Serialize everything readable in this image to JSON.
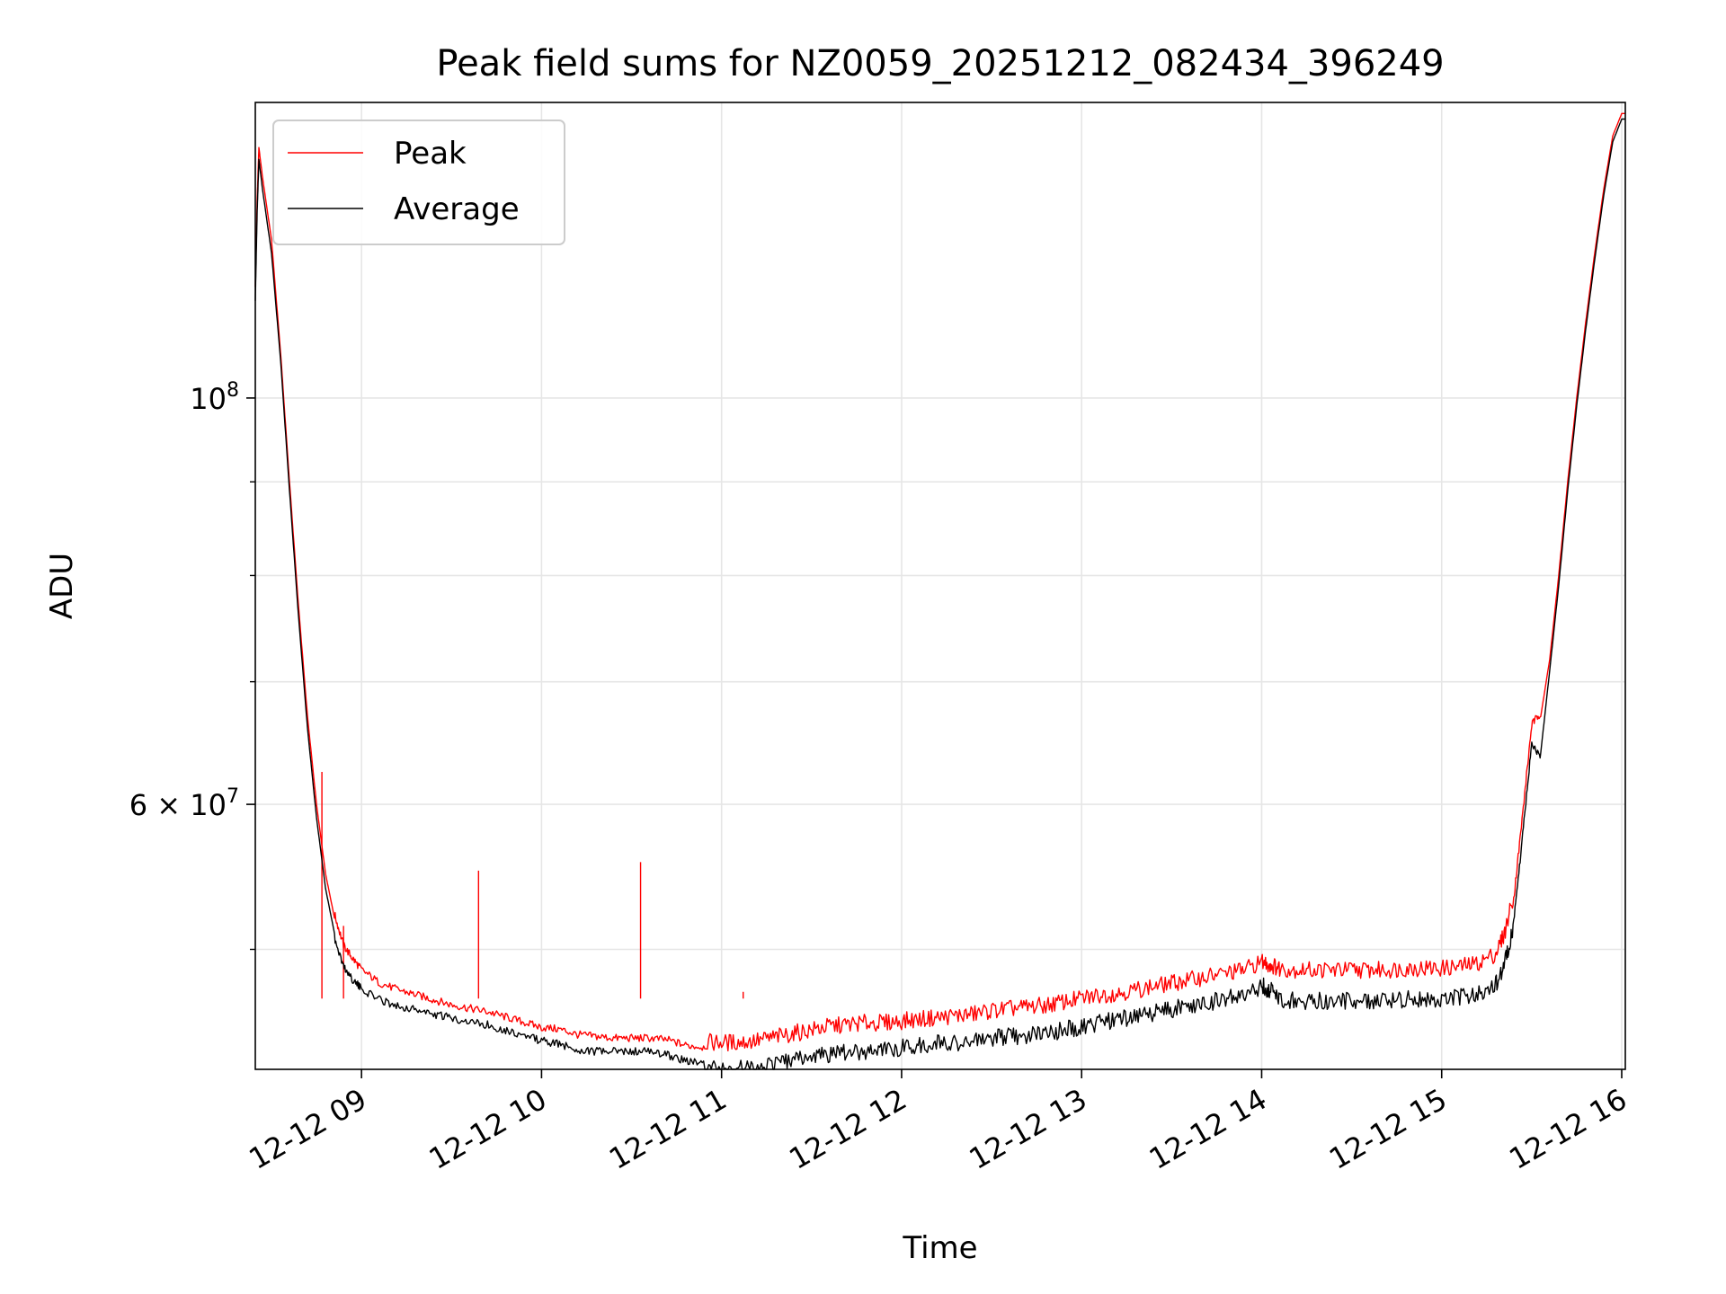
{
  "chart_data": {
    "type": "line",
    "title": "Peak field sums for NZ0059_20251212_082434_396249",
    "xlabel": "Time",
    "ylabel": "ADU",
    "yscale": "log",
    "grid": true,
    "legend_position": "top-left",
    "xlim": [
      8.41,
      16.02
    ],
    "ylim": [
      43000000,
      145000000
    ],
    "x_ticks": [
      {
        "value": 9,
        "label": "12-12 09"
      },
      {
        "value": 10,
        "label": "12-12 10"
      },
      {
        "value": 11,
        "label": "12-12 11"
      },
      {
        "value": 12,
        "label": "12-12 12"
      },
      {
        "value": 13,
        "label": "12-12 13"
      },
      {
        "value": 14,
        "label": "12-12 14"
      },
      {
        "value": 15,
        "label": "12-12 15"
      },
      {
        "value": 16,
        "label": "12-12 16"
      }
    ],
    "y_ticks_major": [
      {
        "value": 100000000,
        "label_base": "10",
        "label_exp": "8",
        "label_times": ""
      },
      {
        "value": 60000000,
        "label_base": "10",
        "label_exp": "7",
        "label_times": "6 × "
      }
    ],
    "y_ticks_minor": [
      50000000,
      70000000,
      80000000,
      90000000
    ],
    "x_unit": "hour of day (2025-12-12)",
    "series": [
      {
        "name": "Peak",
        "color": "#ff0000",
        "x": [
          8.41,
          8.42,
          8.43,
          8.45,
          8.5,
          8.55,
          8.6,
          8.65,
          8.7,
          8.75,
          8.8,
          8.85,
          8.9,
          8.95,
          9.0,
          9.1,
          9.2,
          9.3,
          9.4,
          9.5,
          9.6,
          9.7,
          9.8,
          9.9,
          10.0,
          10.1,
          10.2,
          10.3,
          10.4,
          10.5,
          10.6,
          10.7,
          10.8,
          10.9,
          11.0,
          11.1,
          11.2,
          11.3,
          11.4,
          11.5,
          11.6,
          11.7,
          11.8,
          11.9,
          12.0,
          12.1,
          12.2,
          12.3,
          12.4,
          12.5,
          12.6,
          12.7,
          12.8,
          12.9,
          13.0,
          13.1,
          13.2,
          13.3,
          13.4,
          13.5,
          13.6,
          13.7,
          13.8,
          13.9,
          14.0,
          14.05,
          14.1,
          14.2,
          14.3,
          14.4,
          14.5,
          14.6,
          14.7,
          14.8,
          14.9,
          15.0,
          15.1,
          15.2,
          15.3,
          15.35,
          15.4,
          15.45,
          15.5,
          15.55,
          15.6,
          15.65,
          15.7,
          15.75,
          15.8,
          15.85,
          15.9,
          15.95,
          16.0,
          16.02
        ],
        "y": [
          115000000,
          128000000,
          137000000,
          132000000,
          122000000,
          106000000,
          90000000,
          77000000,
          67000000,
          60000000,
          55000000,
          52000000,
          50000000,
          49200000,
          48500000,
          47700000,
          47300000,
          47000000,
          46700000,
          46400000,
          46200000,
          46000000,
          45700000,
          45400000,
          45100000,
          45000000,
          44700000,
          44600000,
          44500000,
          44500000,
          44500000,
          44400000,
          44100000,
          44000000,
          44000000,
          44000000,
          44100000,
          44300000,
          44500000,
          44700000,
          44900000,
          45000000,
          45100000,
          45100000,
          45200000,
          45300000,
          45400000,
          45500000,
          45600000,
          45800000,
          45900000,
          46000000,
          46100000,
          46300000,
          46500000,
          46700000,
          46800000,
          47000000,
          47200000,
          47400000,
          47600000,
          47800000,
          48000000,
          48200000,
          48700000,
          48500000,
          48300000,
          48200000,
          48200000,
          48200000,
          48200000,
          48200000,
          48200000,
          48300000,
          48300000,
          48300000,
          48400000,
          48600000,
          49200000,
          50500000,
          53000000,
          59000000,
          66000000,
          67000000,
          72000000,
          80000000,
          90000000,
          100000000,
          110000000,
          120000000,
          130000000,
          139000000,
          143000000,
          143000000
        ],
        "spikes": [
          {
            "x": 9.65,
            "y": 55200000
          },
          {
            "x": 10.55,
            "y": 55800000
          },
          {
            "x": 8.9,
            "y": 51500000
          },
          {
            "x": 11.12,
            "y": 47400000
          },
          {
            "x": 8.78,
            "y": 62500000
          }
        ]
      },
      {
        "name": "Average",
        "color": "#000000",
        "x": [
          8.41,
          8.42,
          8.43,
          8.45,
          8.5,
          8.55,
          8.6,
          8.65,
          8.7,
          8.75,
          8.8,
          8.85,
          8.9,
          8.95,
          9.0,
          9.1,
          9.2,
          9.3,
          9.4,
          9.5,
          9.6,
          9.7,
          9.8,
          9.9,
          10.0,
          10.1,
          10.2,
          10.3,
          10.4,
          10.5,
          10.6,
          10.7,
          10.8,
          10.9,
          11.0,
          11.1,
          11.2,
          11.3,
          11.4,
          11.5,
          11.6,
          11.7,
          11.8,
          11.9,
          12.0,
          12.1,
          12.2,
          12.3,
          12.4,
          12.5,
          12.6,
          12.7,
          12.8,
          12.9,
          13.0,
          13.1,
          13.2,
          13.3,
          13.4,
          13.5,
          13.6,
          13.7,
          13.8,
          13.9,
          14.0,
          14.05,
          14.1,
          14.2,
          14.3,
          14.4,
          14.5,
          14.6,
          14.7,
          14.8,
          14.9,
          15.0,
          15.1,
          15.2,
          15.3,
          15.35,
          15.4,
          15.45,
          15.5,
          15.55,
          15.6,
          15.65,
          15.7,
          15.75,
          15.8,
          15.85,
          15.9,
          15.95,
          16.0,
          16.02
        ],
        "y": [
          113000000,
          126000000,
          135000000,
          130000000,
          120000000,
          105000000,
          89000000,
          76000000,
          66000000,
          59000000,
          54000000,
          51000000,
          49200000,
          48400000,
          47800000,
          47200000,
          46800000,
          46600000,
          46300000,
          46100000,
          45900000,
          45700000,
          45400000,
          45100000,
          44800000,
          44600000,
          44300000,
          44200000,
          44200000,
          44200000,
          44200000,
          44000000,
          43700000,
          43500000,
          43500000,
          43500000,
          43600000,
          43800000,
          44000000,
          44200000,
          44300000,
          44400000,
          44500000,
          44600000,
          44700000,
          44800000,
          44900000,
          45000000,
          45000000,
          45200000,
          45300000,
          45400000,
          45500000,
          45700000,
          45900000,
          46100000,
          46300000,
          46500000,
          46700000,
          46900000,
          47100000,
          47300000,
          47500000,
          47700000,
          48300000,
          48000000,
          47500000,
          47400000,
          47400000,
          47400000,
          47400000,
          47400000,
          47400000,
          47500000,
          47500000,
          47500000,
          47600000,
          47800000,
          48400000,
          49600000,
          52000000,
          58000000,
          65000000,
          64000000,
          71000000,
          79000000,
          89000000,
          99000000,
          109000000,
          119000000,
          129000000,
          138000000,
          142000000,
          142000000
        ]
      }
    ]
  }
}
